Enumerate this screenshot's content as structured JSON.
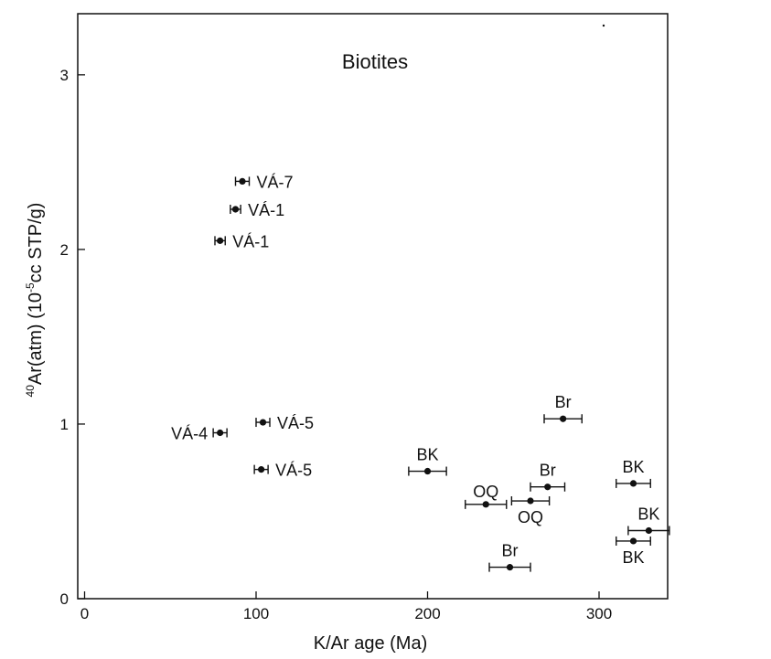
{
  "chart_data": {
    "type": "scatter",
    "title": "Biotites",
    "xlabel": "K/Ar age (Ma)",
    "ylabel_main": "Ar(atm) (10",
    "ylabel_sup_pre": "40",
    "ylabel_sup_mid": "-5",
    "ylabel_tail": "cc STP/g)",
    "xlim": [
      -4,
      340
    ],
    "ylim": [
      0,
      3.35
    ],
    "xticks": [
      0,
      100,
      200,
      300
    ],
    "xtick_labels": [
      "0",
      "100",
      "200",
      "300"
    ],
    "yticks": [
      0,
      1,
      2,
      3
    ],
    "ytick_labels": [
      "0",
      "1",
      "2",
      "3"
    ],
    "grid": false,
    "points": [
      {
        "label": "VÁ-7",
        "x": 92,
        "y": 2.39,
        "xerr": 4,
        "label_pos": "right"
      },
      {
        "label": "VÁ-1",
        "x": 88,
        "y": 2.23,
        "xerr": 3,
        "label_pos": "right"
      },
      {
        "label": "VÁ-1",
        "x": 79,
        "y": 2.05,
        "xerr": 3,
        "label_pos": "right"
      },
      {
        "label": "VÁ-4",
        "x": 79,
        "y": 0.95,
        "xerr": 4,
        "label_pos": "left"
      },
      {
        "label": "VÁ-5",
        "x": 104,
        "y": 1.01,
        "xerr": 4,
        "label_pos": "right"
      },
      {
        "label": "VÁ-5",
        "x": 103,
        "y": 0.74,
        "xerr": 4,
        "label_pos": "right"
      },
      {
        "label": "BK",
        "x": 200,
        "y": 0.73,
        "xerr": 11,
        "label_pos": "above"
      },
      {
        "label": "Br",
        "x": 279,
        "y": 1.03,
        "xerr": 11,
        "label_pos": "above"
      },
      {
        "label": "Br",
        "x": 270,
        "y": 0.64,
        "xerr": 10,
        "label_pos": "above"
      },
      {
        "label": "OQ",
        "x": 260,
        "y": 0.56,
        "xerr": 11,
        "label_pos": "below"
      },
      {
        "label": "OQ",
        "x": 234,
        "y": 0.54,
        "xerr": 12,
        "label_pos": "above-left"
      },
      {
        "label": "Br",
        "x": 248,
        "y": 0.18,
        "xerr": 12,
        "label_pos": "above"
      },
      {
        "label": "BK",
        "x": 320,
        "y": 0.66,
        "xerr": 10,
        "label_pos": "above"
      },
      {
        "label": "BK",
        "x": 329,
        "y": 0.39,
        "xerr": 12,
        "label_pos": "above"
      },
      {
        "label": "BK",
        "x": 320,
        "y": 0.33,
        "xerr": 10,
        "label_pos": "below"
      }
    ]
  }
}
